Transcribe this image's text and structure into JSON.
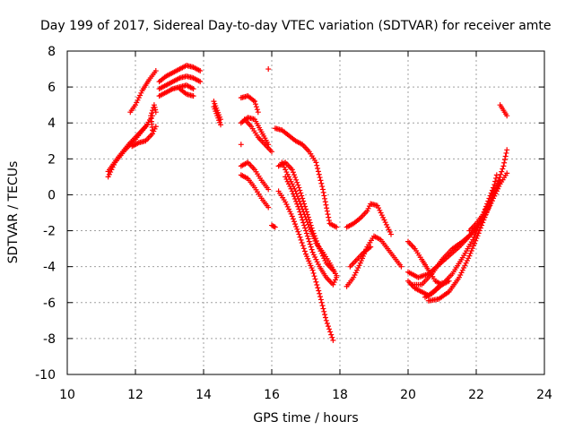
{
  "chart_data": {
    "type": "scatter",
    "title": "Day 199 of 2017, Sidereal Day-to-day VTEC variation (SDTVAR) for receiver amte",
    "xlabel": "GPS time / hours",
    "ylabel": "SDTVAR / TECUs",
    "xlim": [
      10,
      24
    ],
    "ylim": [
      -10,
      8
    ],
    "xticks": [
      "10",
      "12",
      "14",
      "16",
      "18",
      "20",
      "22",
      "24"
    ],
    "yticks": [
      "8",
      "6",
      "4",
      "2",
      "0",
      "-2",
      "-4",
      "-6",
      "-8",
      "-10"
    ],
    "grid": true,
    "marker": "plus",
    "color": "#ff0000",
    "tracks": [
      {
        "x": [
          11.2,
          11.4,
          11.7,
          12.0,
          12.3,
          12.5
        ],
        "y": [
          1.0,
          1.8,
          2.5,
          3.1,
          3.8,
          4.4
        ]
      },
      {
        "x": [
          11.2,
          11.5,
          11.8,
          12.1,
          12.35
        ],
        "y": [
          1.3,
          2.1,
          2.8,
          3.4,
          3.9
        ]
      },
      {
        "x": [
          11.9,
          12.1,
          12.3,
          12.5,
          12.6
        ],
        "y": [
          2.7,
          2.9,
          3.0,
          3.4,
          3.8
        ]
      },
      {
        "x": [
          12.5,
          12.45,
          12.55,
          12.6
        ],
        "y": [
          3.6,
          4.4,
          5.0,
          4.6
        ]
      },
      {
        "x": [
          11.85,
          12.0,
          12.2,
          12.4,
          12.6
        ],
        "y": [
          4.6,
          5.0,
          5.8,
          6.4,
          6.9
        ]
      },
      {
        "x": [
          12.7,
          12.9,
          13.1,
          13.3,
          13.5,
          13.7,
          13.9
        ],
        "y": [
          6.3,
          6.6,
          6.8,
          7.0,
          7.2,
          7.1,
          6.9
        ]
      },
      {
        "x": [
          12.7,
          12.9,
          13.1,
          13.3,
          13.5,
          13.7,
          13.9
        ],
        "y": [
          5.9,
          6.1,
          6.3,
          6.5,
          6.6,
          6.5,
          6.3
        ]
      },
      {
        "x": [
          12.7,
          12.9,
          13.1,
          13.3,
          13.5,
          13.7
        ],
        "y": [
          5.5,
          5.7,
          5.9,
          6.0,
          6.1,
          5.9
        ]
      },
      {
        "x": [
          13.3,
          13.5,
          13.7
        ],
        "y": [
          5.9,
          5.6,
          5.5
        ]
      },
      {
        "x": [
          14.3,
          14.4,
          14.5
        ],
        "y": [
          5.2,
          4.7,
          4.2
        ]
      },
      {
        "x": [
          14.3,
          14.4,
          14.5
        ],
        "y": [
          4.9,
          4.4,
          3.9
        ]
      },
      {
        "x": [
          15.1,
          15.3,
          15.5,
          15.6
        ],
        "y": [
          5.4,
          5.5,
          5.2,
          4.6
        ]
      },
      {
        "x": [
          15.1,
          15.3,
          15.5,
          15.7,
          15.9
        ],
        "y": [
          4.0,
          4.3,
          4.2,
          3.5,
          2.8
        ]
      },
      {
        "x": [
          15.2,
          15.4,
          15.6,
          15.8,
          16.0
        ],
        "y": [
          4.2,
          3.8,
          3.2,
          2.8,
          2.4
        ]
      },
      {
        "x": [
          15.1
        ],
        "y": [
          2.8
        ]
      },
      {
        "x": [
          15.9
        ],
        "y": [
          7.0
        ]
      },
      {
        "x": [
          15.1,
          15.3,
          15.5,
          15.7,
          15.9
        ],
        "y": [
          1.6,
          1.8,
          1.4,
          0.8,
          0.3
        ]
      },
      {
        "x": [
          15.1,
          15.3,
          15.5,
          15.7,
          15.9
        ],
        "y": [
          1.1,
          0.9,
          0.4,
          -0.2,
          -0.7
        ]
      },
      {
        "x": [
          16.0,
          16.1
        ],
        "y": [
          -1.7,
          -1.8
        ]
      },
      {
        "x": [
          16.1,
          16.3,
          16.5,
          16.7,
          16.9,
          17.1,
          17.3,
          17.5,
          17.7,
          17.9
        ],
        "y": [
          3.7,
          3.6,
          3.3,
          3.0,
          2.8,
          2.4,
          1.8,
          0.3,
          -1.6,
          -1.8
        ]
      },
      {
        "x": [
          16.2,
          16.4,
          16.6,
          16.8,
          17.0,
          17.2,
          17.4,
          17.6,
          17.8
        ],
        "y": [
          1.6,
          1.8,
          1.4,
          0.4,
          -0.8,
          -2.0,
          -3.0,
          -3.8,
          -4.2
        ]
      },
      {
        "x": [
          16.3,
          16.5,
          16.7,
          16.9,
          17.1,
          17.3,
          17.5,
          17.7,
          17.9
        ],
        "y": [
          1.8,
          1.0,
          0.2,
          -0.8,
          -1.8,
          -2.7,
          -3.2,
          -3.8,
          -4.5
        ]
      },
      {
        "x": [
          16.2,
          16.4,
          16.6,
          16.8,
          17.0,
          17.2,
          17.4,
          17.6,
          17.8
        ],
        "y": [
          0.2,
          -0.4,
          -1.2,
          -2.2,
          -3.3,
          -4.2,
          -5.5,
          -7.0,
          -8.1
        ]
      },
      {
        "x": [
          16.4,
          16.6,
          16.8,
          17.0,
          17.2,
          17.4,
          17.6,
          17.8,
          17.9
        ],
        "y": [
          1.0,
          0.2,
          -0.8,
          -2.0,
          -3.2,
          -4.0,
          -4.6,
          -5.0,
          -4.6
        ]
      },
      {
        "x": [
          18.2,
          18.4,
          18.6,
          18.8,
          18.9,
          19.1,
          19.3,
          19.5
        ],
        "y": [
          -1.8,
          -1.6,
          -1.3,
          -0.9,
          -0.5,
          -0.6,
          -1.4,
          -2.2
        ]
      },
      {
        "x": [
          18.2,
          18.4,
          18.6,
          18.8,
          19.0,
          19.2,
          19.4,
          19.6,
          19.8
        ],
        "y": [
          -5.1,
          -4.6,
          -3.8,
          -2.9,
          -2.3,
          -2.5,
          -3.0,
          -3.5,
          -4.0
        ]
      },
      {
        "x": [
          18.3,
          18.5,
          18.7,
          18.9
        ],
        "y": [
          -4.0,
          -3.6,
          -3.2,
          -2.9
        ]
      },
      {
        "x": [
          20.0,
          20.2,
          20.4,
          20.6,
          20.8,
          21.0,
          21.2
        ],
        "y": [
          -2.6,
          -3.0,
          -3.6,
          -4.2,
          -4.8,
          -5.0,
          -4.8
        ]
      },
      {
        "x": [
          20.0,
          20.2,
          20.4,
          20.6,
          20.8,
          21.0
        ],
        "y": [
          -4.8,
          -5.2,
          -5.4,
          -5.6,
          -5.3,
          -4.9
        ]
      },
      {
        "x": [
          20.0,
          20.3,
          20.6,
          20.9,
          21.2,
          21.5,
          21.8,
          22.1,
          22.4,
          22.7,
          22.9
        ],
        "y": [
          -4.3,
          -4.6,
          -4.4,
          -3.9,
          -3.4,
          -2.9,
          -2.3,
          -1.6,
          -0.6,
          0.6,
          1.2
        ]
      },
      {
        "x": [
          20.1,
          20.4,
          20.7,
          21.0,
          21.3,
          21.6,
          21.9,
          22.2,
          22.5,
          22.7
        ],
        "y": [
          -5.0,
          -5.0,
          -4.4,
          -3.6,
          -3.0,
          -2.6,
          -2.1,
          -1.4,
          -0.2,
          0.8
        ]
      },
      {
        "x": [
          20.5,
          20.7,
          21.0,
          21.3,
          21.6,
          21.9,
          22.2,
          22.5
        ],
        "y": [
          -5.7,
          -5.5,
          -5.0,
          -4.4,
          -3.5,
          -2.5,
          -1.1,
          0.4
        ]
      },
      {
        "x": [
          20.6,
          20.9,
          21.2,
          21.5,
          21.8,
          22.1,
          22.4,
          22.6
        ],
        "y": [
          -5.9,
          -5.8,
          -5.4,
          -4.6,
          -3.4,
          -2.0,
          -0.5,
          1.1
        ]
      },
      {
        "x": [
          21.8,
          22.0,
          22.2,
          22.4,
          22.6,
          22.8,
          22.9
        ],
        "y": [
          -2.0,
          -1.6,
          -1.1,
          -0.4,
          0.5,
          1.6,
          2.5
        ]
      },
      {
        "x": [
          22.7,
          22.8,
          22.9
        ],
        "y": [
          5.0,
          4.7,
          4.4
        ]
      }
    ]
  }
}
